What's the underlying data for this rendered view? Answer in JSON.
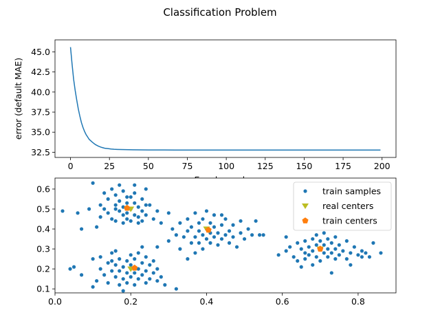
{
  "figure": {
    "title": "Classification Problem"
  },
  "chart_data": [
    {
      "type": "line",
      "xlabel": "Epoch number",
      "ylabel": "error (default MAE)",
      "xlim": [
        -9.95,
        208.95
      ],
      "ylim": [
        31.85,
        46.5
      ],
      "xticks": [
        0,
        25,
        50,
        75,
        100,
        125,
        150,
        175,
        200
      ],
      "yticks": [
        32.5,
        35.0,
        37.5,
        40.0,
        42.5,
        45.0
      ],
      "series": [
        {
          "color": "#1f77b4",
          "x": [
            0,
            1,
            2,
            3,
            4,
            5,
            6,
            7,
            8,
            9,
            10,
            12,
            14,
            16,
            18,
            20,
            22,
            24,
            26,
            28,
            30,
            35,
            40,
            45,
            50,
            60,
            70,
            80,
            90,
            100,
            120,
            140,
            160,
            180,
            199
          ],
          "y": [
            45.6,
            43.5,
            41.6,
            40.2,
            39.0,
            37.9,
            37.0,
            36.2,
            35.6,
            35.1,
            34.7,
            34.1,
            33.75,
            33.45,
            33.25,
            33.1,
            33.0,
            32.95,
            32.9,
            32.87,
            32.85,
            32.82,
            32.8,
            32.79,
            32.78,
            32.78,
            32.77,
            32.77,
            32.77,
            32.77,
            32.77,
            32.77,
            32.77,
            32.77,
            32.77
          ]
        }
      ],
      "grid": false
    },
    {
      "type": "scatter",
      "xlim": [
        -0.0,
        0.9
      ],
      "ylim": [
        0.08,
        0.655
      ],
      "xticks": [
        0.0,
        0.2,
        0.4,
        0.6,
        0.8
      ],
      "yticks": [
        0.1,
        0.2,
        0.3,
        0.4,
        0.5,
        0.6
      ],
      "legend_position": "top-right",
      "series": [
        {
          "name": "train samples",
          "color": "#1f77b4",
          "marker": "point",
          "points": [
            [
              0.02,
              0.49
            ],
            [
              0.06,
              0.48
            ],
            [
              0.07,
              0.4
            ],
            [
              0.09,
              0.5
            ],
            [
              0.1,
              0.63
            ],
            [
              0.11,
              0.41
            ],
            [
              0.12,
              0.46
            ],
            [
              0.12,
              0.52
            ],
            [
              0.13,
              0.58
            ],
            [
              0.14,
              0.55
            ],
            [
              0.14,
              0.48
            ],
            [
              0.15,
              0.6
            ],
            [
              0.15,
              0.45
            ],
            [
              0.16,
              0.52
            ],
            [
              0.16,
              0.57
            ],
            [
              0.16,
              0.44
            ],
            [
              0.17,
              0.49
            ],
            [
              0.17,
              0.62
            ],
            [
              0.17,
              0.54
            ],
            [
              0.18,
              0.47
            ],
            [
              0.18,
              0.51
            ],
            [
              0.18,
              0.59
            ],
            [
              0.19,
              0.45
            ],
            [
              0.19,
              0.53
            ],
            [
              0.19,
              0.48
            ],
            [
              0.2,
              0.56
            ],
            [
              0.2,
              0.44
            ],
            [
              0.2,
              0.5
            ],
            [
              0.21,
              0.47
            ],
            [
              0.21,
              0.53
            ],
            [
              0.21,
              0.58
            ],
            [
              0.22,
              0.46
            ],
            [
              0.22,
              0.51
            ],
            [
              0.22,
              0.43
            ],
            [
              0.23,
              0.49
            ],
            [
              0.23,
              0.55
            ],
            [
              0.24,
              0.47
            ],
            [
              0.24,
              0.6
            ],
            [
              0.25,
              0.52
            ],
            [
              0.26,
              0.45
            ],
            [
              0.27,
              0.49
            ],
            [
              0.28,
              0.43
            ],
            [
              0.3,
              0.48
            ],
            [
              0.16,
              0.5
            ],
            [
              0.18,
              0.43
            ],
            [
              0.23,
              0.44
            ],
            [
              0.21,
              0.62
            ],
            [
              0.13,
              0.5
            ],
            [
              0.19,
              0.56
            ],
            [
              0.24,
              0.52
            ],
            [
              0.05,
              0.21
            ],
            [
              0.04,
              0.2
            ],
            [
              0.07,
              0.17
            ],
            [
              0.1,
              0.25
            ],
            [
              0.1,
              0.11
            ],
            [
              0.11,
              0.14
            ],
            [
              0.12,
              0.2
            ],
            [
              0.12,
              0.26
            ],
            [
              0.13,
              0.17
            ],
            [
              0.14,
              0.23
            ],
            [
              0.14,
              0.13
            ],
            [
              0.15,
              0.19
            ],
            [
              0.15,
              0.28
            ],
            [
              0.16,
              0.16
            ],
            [
              0.16,
              0.22
            ],
            [
              0.16,
              0.29
            ],
            [
              0.17,
              0.12
            ],
            [
              0.17,
              0.19
            ],
            [
              0.17,
              0.25
            ],
            [
              0.18,
              0.09
            ],
            [
              0.18,
              0.15
            ],
            [
              0.18,
              0.21
            ],
            [
              0.19,
              0.13
            ],
            [
              0.19,
              0.18
            ],
            [
              0.19,
              0.24
            ],
            [
              0.2,
              0.16
            ],
            [
              0.2,
              0.22
            ],
            [
              0.2,
              0.27
            ],
            [
              0.21,
              0.12
            ],
            [
              0.21,
              0.18
            ],
            [
              0.21,
              0.25
            ],
            [
              0.22,
              0.15
            ],
            [
              0.22,
              0.2
            ],
            [
              0.22,
              0.28
            ],
            [
              0.23,
              0.17
            ],
            [
              0.23,
              0.23
            ],
            [
              0.24,
              0.13
            ],
            [
              0.24,
              0.19
            ],
            [
              0.24,
              0.26
            ],
            [
              0.25,
              0.15
            ],
            [
              0.25,
              0.22
            ],
            [
              0.26,
              0.18
            ],
            [
              0.26,
              0.24
            ],
            [
              0.27,
              0.14
            ],
            [
              0.27,
              0.2
            ],
            [
              0.28,
              0.16
            ],
            [
              0.29,
              0.12
            ],
            [
              0.32,
              0.1
            ],
            [
              0.15,
              0.24
            ],
            [
              0.23,
              0.31
            ],
            [
              0.3,
              0.34
            ],
            [
              0.31,
              0.4
            ],
            [
              0.32,
              0.37
            ],
            [
              0.33,
              0.43
            ],
            [
              0.33,
              0.3
            ],
            [
              0.34,
              0.36
            ],
            [
              0.35,
              0.39
            ],
            [
              0.35,
              0.45
            ],
            [
              0.36,
              0.33
            ],
            [
              0.36,
              0.41
            ],
            [
              0.37,
              0.36
            ],
            [
              0.37,
              0.48
            ],
            [
              0.37,
              0.28
            ],
            [
              0.38,
              0.39
            ],
            [
              0.38,
              0.43
            ],
            [
              0.38,
              0.33
            ],
            [
              0.39,
              0.37
            ],
            [
              0.39,
              0.45
            ],
            [
              0.39,
              0.3
            ],
            [
              0.4,
              0.4
            ],
            [
              0.4,
              0.35
            ],
            [
              0.4,
              0.49
            ],
            [
              0.41,
              0.38
            ],
            [
              0.41,
              0.43
            ],
            [
              0.41,
              0.33
            ],
            [
              0.42,
              0.36
            ],
            [
              0.42,
              0.41
            ],
            [
              0.42,
              0.47
            ],
            [
              0.43,
              0.38
            ],
            [
              0.43,
              0.32
            ],
            [
              0.44,
              0.35
            ],
            [
              0.44,
              0.42
            ],
            [
              0.45,
              0.37
            ],
            [
              0.45,
              0.45
            ],
            [
              0.46,
              0.33
            ],
            [
              0.46,
              0.39
            ],
            [
              0.47,
              0.36
            ],
            [
              0.47,
              0.42
            ],
            [
              0.48,
              0.31
            ],
            [
              0.49,
              0.38
            ],
            [
              0.49,
              0.44
            ],
            [
              0.5,
              0.35
            ],
            [
              0.51,
              0.4
            ],
            [
              0.52,
              0.37
            ],
            [
              0.53,
              0.44
            ],
            [
              0.54,
              0.37
            ],
            [
              0.55,
              0.37
            ],
            [
              0.27,
              0.31
            ],
            [
              0.35,
              0.25
            ],
            [
              0.44,
              0.47
            ],
            [
              0.59,
              0.27
            ],
            [
              0.61,
              0.36
            ],
            [
              0.61,
              0.29
            ],
            [
              0.62,
              0.31
            ],
            [
              0.63,
              0.26
            ],
            [
              0.64,
              0.33
            ],
            [
              0.64,
              0.24
            ],
            [
              0.65,
              0.3
            ],
            [
              0.65,
              0.21
            ],
            [
              0.66,
              0.28
            ],
            [
              0.66,
              0.34
            ],
            [
              0.66,
              0.25
            ],
            [
              0.67,
              0.31
            ],
            [
              0.67,
              0.27
            ],
            [
              0.68,
              0.35
            ],
            [
              0.68,
              0.22
            ],
            [
              0.68,
              0.29
            ],
            [
              0.69,
              0.32
            ],
            [
              0.69,
              0.26
            ],
            [
              0.69,
              0.37
            ],
            [
              0.7,
              0.3
            ],
            [
              0.7,
              0.24
            ],
            [
              0.7,
              0.34
            ],
            [
              0.71,
              0.28
            ],
            [
              0.71,
              0.32
            ],
            [
              0.71,
              0.38
            ],
            [
              0.72,
              0.26
            ],
            [
              0.72,
              0.3
            ],
            [
              0.72,
              0.35
            ],
            [
              0.73,
              0.18
            ],
            [
              0.73,
              0.28
            ],
            [
              0.73,
              0.33
            ],
            [
              0.74,
              0.25
            ],
            [
              0.74,
              0.3
            ],
            [
              0.74,
              0.36
            ],
            [
              0.75,
              0.27
            ],
            [
              0.75,
              0.32
            ],
            [
              0.76,
              0.29
            ],
            [
              0.77,
              0.25
            ],
            [
              0.77,
              0.34
            ],
            [
              0.78,
              0.28
            ],
            [
              0.78,
              0.22
            ],
            [
              0.79,
              0.31
            ],
            [
              0.8,
              0.27
            ],
            [
              0.81,
              0.26
            ],
            [
              0.81,
              0.29
            ],
            [
              0.82,
              0.28
            ],
            [
              0.83,
              0.26
            ],
            [
              0.84,
              0.33
            ],
            [
              0.86,
              0.28
            ]
          ]
        },
        {
          "name": "real centers",
          "color": "#bcbd22",
          "marker": "triangle-down",
          "points": [
            [
              0.2,
              0.5
            ],
            [
              0.2,
              0.2
            ],
            [
              0.4,
              0.4
            ],
            [
              0.7,
              0.3
            ]
          ]
        },
        {
          "name": "train centers",
          "color": "#ff7f0e",
          "marker": "pentagon",
          "points": [
            [
              0.19,
              0.505
            ],
            [
              0.21,
              0.205
            ],
            [
              0.405,
              0.395
            ],
            [
              0.7,
              0.3
            ]
          ]
        }
      ]
    }
  ]
}
